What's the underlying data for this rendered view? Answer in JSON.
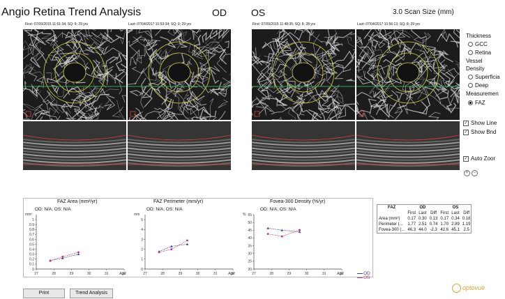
{
  "app": {
    "title": "Angio Retina Trend Analysis"
  },
  "eyes": {
    "od": "OD",
    "os": "OS"
  },
  "scan_size": "3.0 Scan Size (mm)",
  "scans": {
    "od_first": "First: 07/09/2015 11:51:34; SQ: 9; 29 yrs",
    "od_last": "Last: 07/04/2017 10:53:34; SQ: 9; 29 yrs",
    "os_first": "First: 07/09/2015 11:48:35; SQ: 8; 28 yrs",
    "os_last": "Last: 07/04/2017 10:56:13; SQ: 8; 29 yrs"
  },
  "controls": {
    "thickness": "Thickness",
    "gcc": "GCC",
    "retina": "Retina",
    "vessel": "Vessel",
    "density": "Density",
    "superficial": "Superficia",
    "deep": "Deep",
    "measurement": "Measuremen",
    "faz": "FAZ",
    "show_lines": "Show Line",
    "show_bnd": "Show Bnd",
    "auto_zoom": "Auto Zoor",
    "check_mark": "✓"
  },
  "buttons": {
    "print": "Print",
    "trend": "Trend Analysis"
  },
  "legend": {
    "od_na": "OD: N/A; OS: N/A",
    "od": "OD",
    "os": "OS"
  },
  "faz_table": {
    "headers": [
      "FAZ",
      "OD",
      "OS"
    ],
    "sub": [
      "First",
      "Last",
      "Diff",
      "First",
      "Last",
      "Diff"
    ],
    "rows": [
      {
        "label": "Area (mm²)",
        "values": [
          "0.17",
          "0.30",
          "0.13",
          "0.17",
          "0.34",
          "0.18"
        ]
      },
      {
        "label": "Perimeter (...",
        "values": [
          "1.77",
          "2.51",
          "0.74",
          "1.70",
          "2.89",
          "1.19"
        ]
      },
      {
        "label": "Fovea-300 (...",
        "values": [
          "46.3",
          "44.0",
          "-2.3",
          "42.6",
          "45.1",
          "2.5"
        ]
      }
    ]
  },
  "logo": "optovue",
  "colors": {
    "od": "#3a3aa8",
    "os": "#c0306a",
    "scan_green": "#2fa84a",
    "seg_red": "#e04040",
    "faz_yellow": "#d8d24a"
  },
  "chart_data": [
    {
      "type": "scatter",
      "title": "FAZ Area (mm²/yr)",
      "ylabel": "mm²",
      "xlabel": "Age",
      "ylim": [
        0,
        1.1
      ],
      "yticks": [
        0,
        0.1,
        0.2,
        0.3,
        0.4,
        0.5,
        0.6,
        0.7,
        0.8,
        0.9,
        1
      ],
      "xticks": [
        27,
        28,
        29,
        30,
        31,
        32
      ],
      "series": [
        {
          "name": "OD",
          "x": [
            27.8,
            28.5,
            29.4
          ],
          "values": [
            0.17,
            0.22,
            0.3
          ]
        },
        {
          "name": "OS",
          "x": [
            27.8,
            28.5,
            29.4
          ],
          "values": [
            0.17,
            0.25,
            0.34
          ]
        }
      ]
    },
    {
      "type": "scatter",
      "title": "FAZ Perimeter (mm/yr)",
      "ylabel": "mm",
      "xlabel": "Age",
      "ylim": [
        0,
        5.5
      ],
      "yticks": [
        0,
        1,
        2,
        3,
        4,
        5
      ],
      "xticks": [
        27,
        28,
        29,
        30,
        31,
        32
      ],
      "series": [
        {
          "name": "OD",
          "x": [
            27.8,
            28.5,
            29.4
          ],
          "values": [
            1.77,
            2.3,
            2.51
          ]
        },
        {
          "name": "OS",
          "x": [
            27.8,
            28.5,
            29.4
          ],
          "values": [
            1.7,
            2.0,
            2.89
          ]
        }
      ]
    },
    {
      "type": "scatter",
      "title": "Fovea-300 Density (%/yr)",
      "ylabel": "%",
      "xlabel": "Age",
      "ylim": [
        20,
        55
      ],
      "yticks": [
        20,
        25,
        30,
        35,
        40,
        45,
        50,
        55
      ],
      "xticks": [
        27,
        28,
        29,
        30,
        31,
        32
      ],
      "series": [
        {
          "name": "OD",
          "x": [
            27.8,
            28.6,
            29.6
          ],
          "values": [
            46.3,
            45.0,
            44.0
          ]
        },
        {
          "name": "OS",
          "x": [
            27.8,
            28.6,
            29.6
          ],
          "values": [
            42.6,
            41.0,
            45.1
          ]
        }
      ]
    }
  ]
}
